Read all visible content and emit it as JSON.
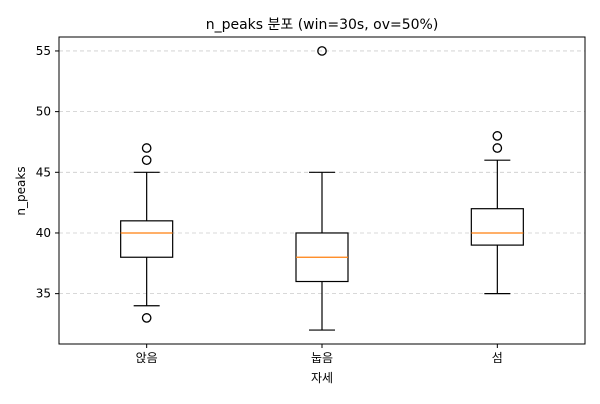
{
  "chart_data": {
    "type": "box",
    "title": "n_peaks 분포 (win=30s, ov=50%)",
    "xlabel": "자세",
    "ylabel": "n_peaks",
    "ylim": [
      30.85,
      56.15
    ],
    "yticks": [
      35,
      40,
      45,
      50,
      55
    ],
    "grid": {
      "y": true,
      "x": false,
      "style": "dashed"
    },
    "categories": [
      "앉음",
      "눕음",
      "섬"
    ],
    "boxes": [
      {
        "category": "앉음",
        "whisker_low": 34,
        "q1": 38,
        "median": 40,
        "q3": 41,
        "whisker_high": 45,
        "outliers": [
          33,
          46,
          47
        ]
      },
      {
        "category": "눕음",
        "whisker_low": 32,
        "q1": 36,
        "median": 38,
        "q3": 40,
        "whisker_high": 45,
        "outliers": [
          55
        ]
      },
      {
        "category": "섬",
        "whisker_low": 35,
        "q1": 39,
        "median": 40,
        "q3": 42,
        "whisker_high": 46,
        "outliers": [
          47,
          48
        ]
      }
    ],
    "colors": {
      "box": "#000000",
      "median": "#ff7f0e",
      "grid": "#cccccc",
      "outlier_fill": "none"
    }
  }
}
